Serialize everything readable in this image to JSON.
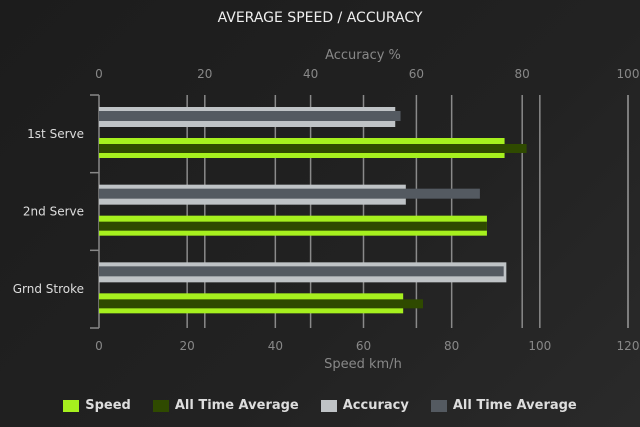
{
  "chart_data": {
    "type": "bar",
    "orientation": "horizontal",
    "title": "AVERAGE SPEED / ACCURACY",
    "categories": [
      "1st Serve",
      "2nd Serve",
      "Grnd Stroke"
    ],
    "top_axis": {
      "label": "Accuracy %",
      "range": [
        0,
        100
      ],
      "ticks": [
        0,
        20,
        40,
        60,
        80,
        100
      ]
    },
    "bottom_axis": {
      "label": "Speed km/h",
      "range": [
        0,
        120
      ],
      "ticks": [
        0,
        20,
        40,
        60,
        80,
        100,
        120
      ]
    },
    "grid": true,
    "legend_position": "bottom",
    "series": [
      {
        "name": "Speed",
        "axis": "bottom",
        "color": "#a6f01e",
        "values": [
          92,
          88,
          69
        ]
      },
      {
        "name": "All Time Average",
        "axis": "bottom",
        "color": "#2f4a00",
        "values": [
          97,
          88,
          73.5
        ]
      },
      {
        "name": "Accuracy",
        "axis": "top",
        "color": "#bfc3c6",
        "values": [
          56,
          58,
          77
        ]
      },
      {
        "name": "All Time Average",
        "axis": "top",
        "color": "#545a61",
        "values": [
          57,
          72,
          76.5
        ]
      }
    ]
  }
}
